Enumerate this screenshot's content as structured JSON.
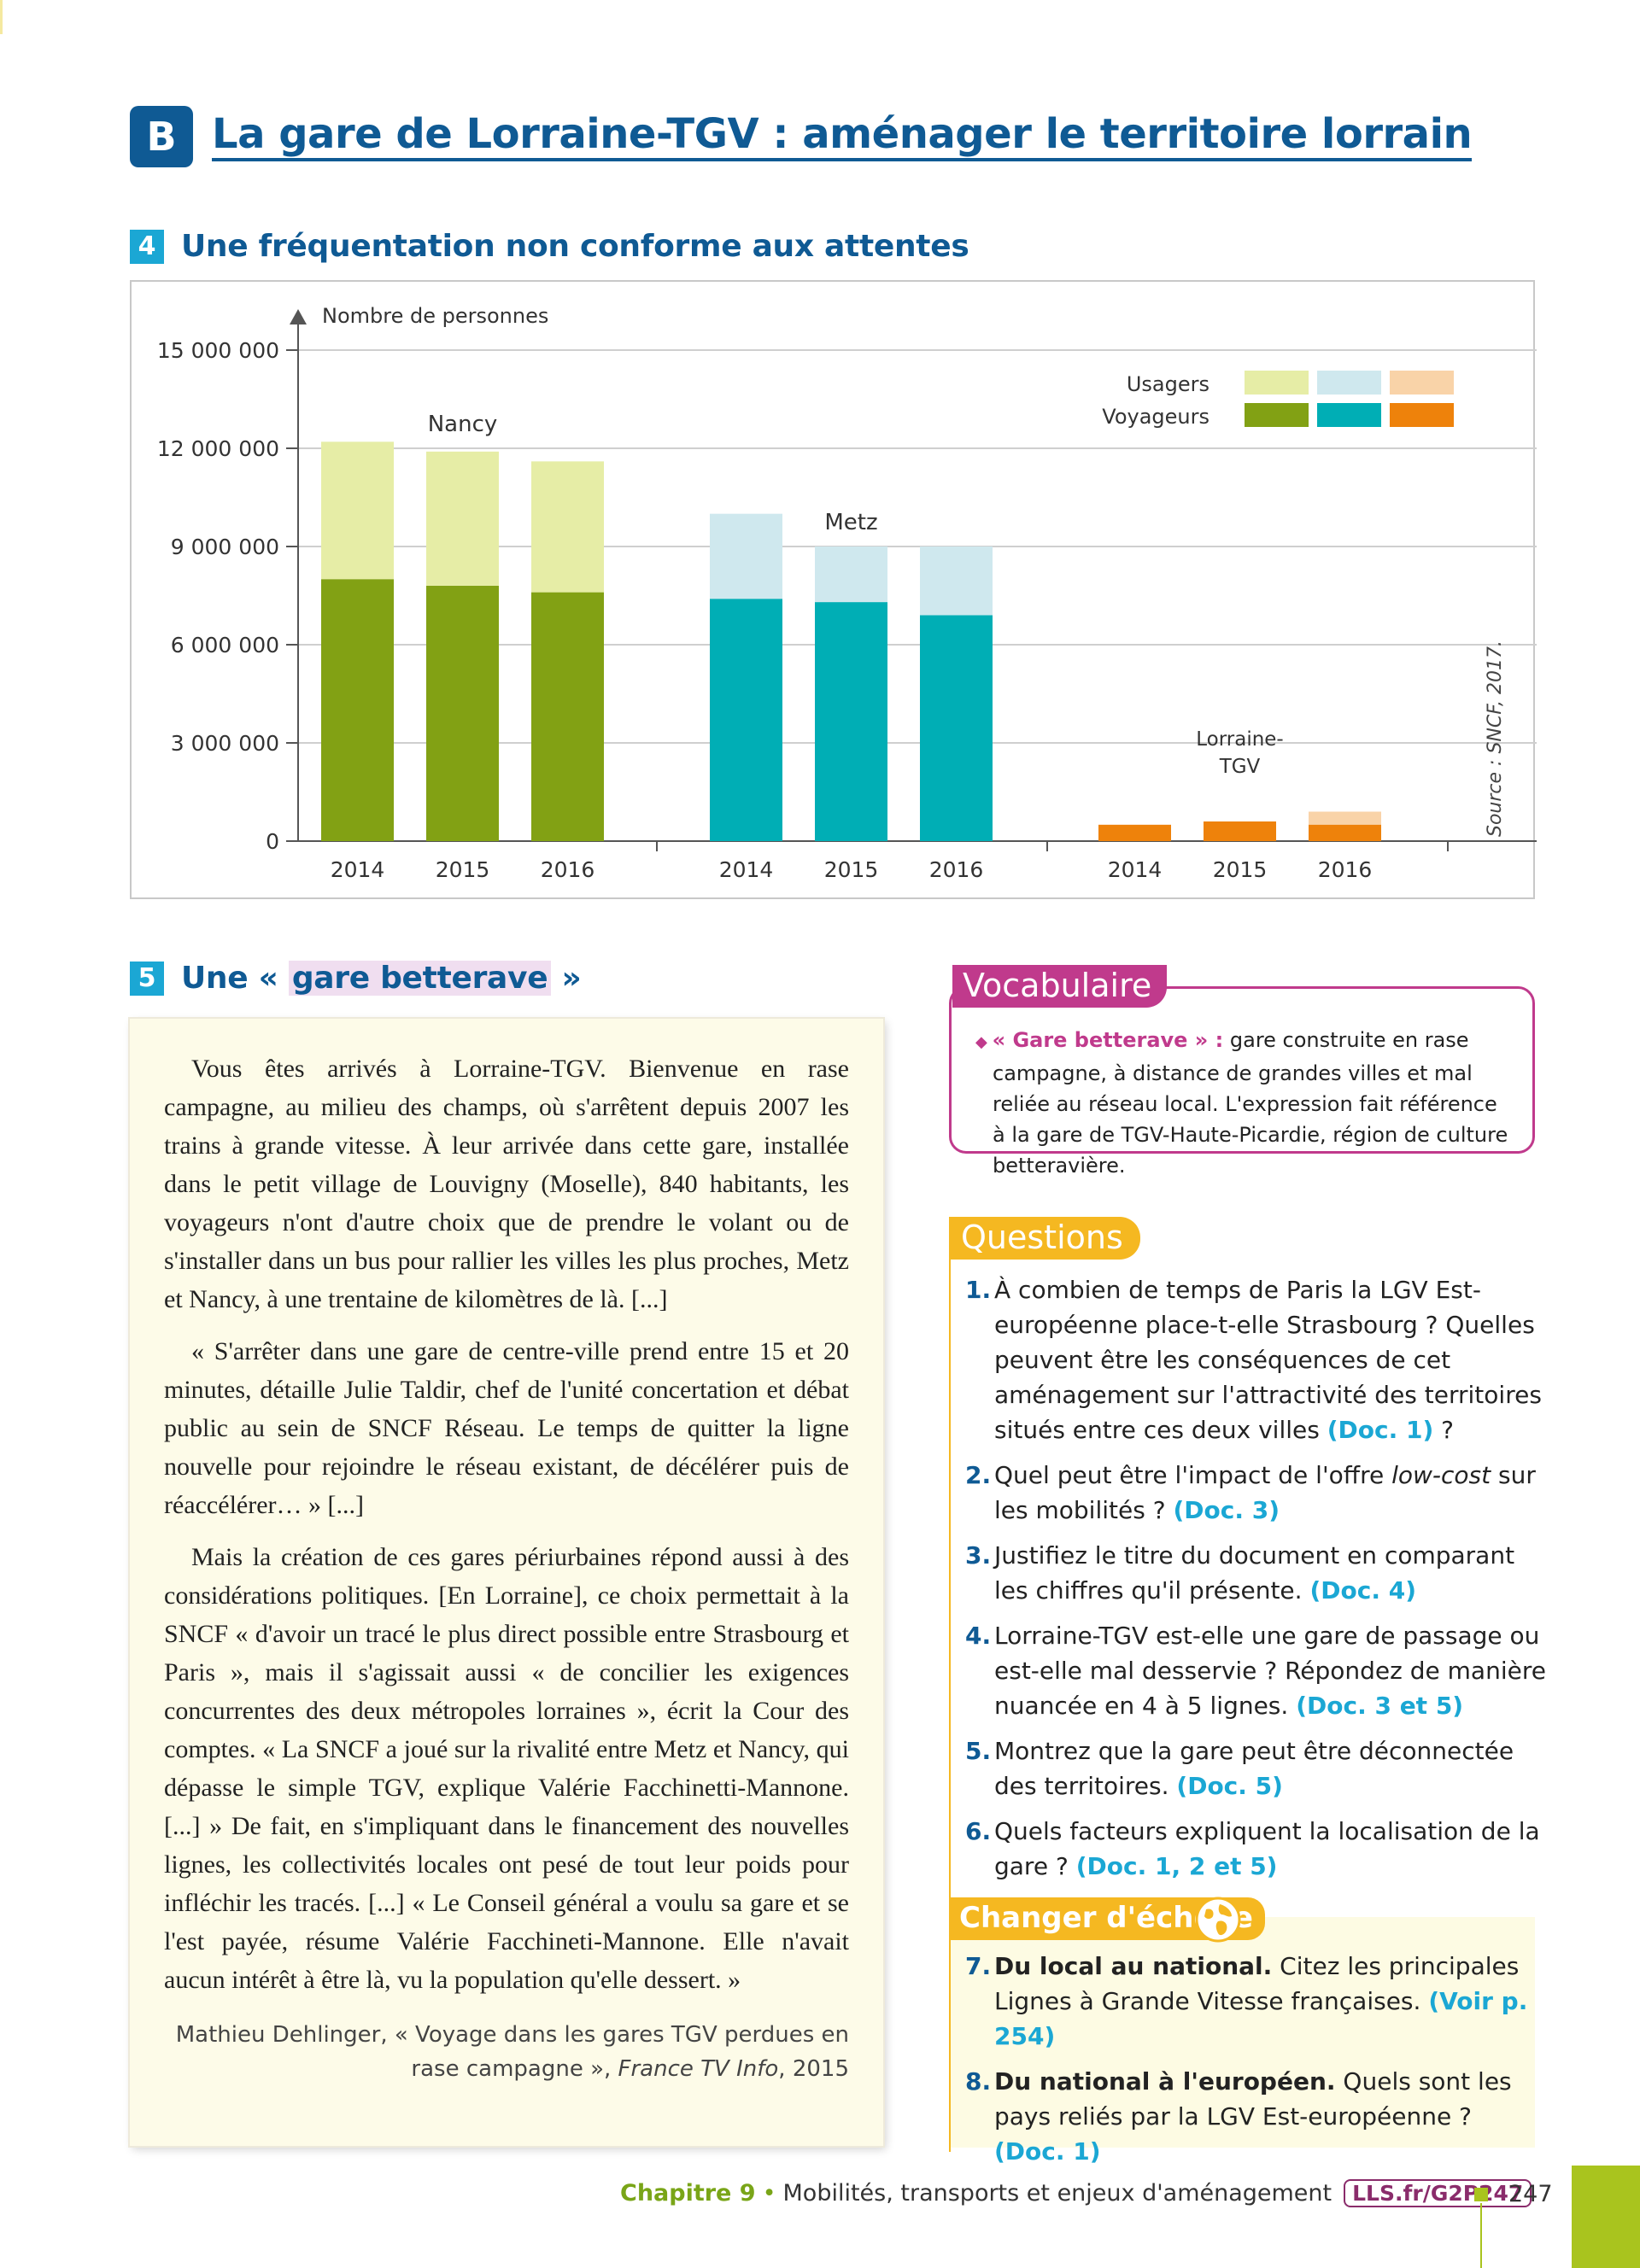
{
  "section": {
    "letter": "B",
    "title": "La gare de Lorraine-TGV : aménager le territoire lorrain"
  },
  "doc4": {
    "number": "4",
    "title": "Une fréquentation non conforme aux attentes",
    "source": "Source : SNCF, 2017."
  },
  "chart_data": {
    "type": "bar",
    "stacked": true,
    "ylabel": "Nombre de personnes",
    "ylim": [
      0,
      15000000
    ],
    "yticks": [
      0,
      3000000,
      6000000,
      9000000,
      12000000,
      15000000
    ],
    "ytick_labels": [
      "0",
      "3 000 000",
      "6 000 000",
      "9 000 000",
      "12 000 000",
      "15 000 000"
    ],
    "grid": true,
    "legend": {
      "placement": "top-right",
      "entries": [
        "Usagers",
        "Voyageurs"
      ]
    },
    "groups": [
      {
        "name_lines": [
          "Nancy"
        ],
        "years": [
          "2014",
          "2015",
          "2016"
        ],
        "voyageurs": [
          8000000,
          7800000,
          7600000
        ],
        "usagers_total": [
          12200000,
          11900000,
          11600000
        ],
        "color_dark": "#82a114",
        "color_light": "#e6eda6"
      },
      {
        "name_lines": [
          "Metz"
        ],
        "years": [
          "2014",
          "2015",
          "2016"
        ],
        "voyageurs": [
          7400000,
          7300000,
          6900000
        ],
        "usagers_total": [
          10000000,
          9000000,
          9000000
        ],
        "color_dark": "#00aeb5",
        "color_light": "#cfe8ee"
      },
      {
        "name_lines": [
          "Lorraine-",
          "TGV"
        ],
        "years": [
          "2014",
          "2015",
          "2016"
        ],
        "voyageurs": [
          500000,
          600000,
          500000
        ],
        "usagers_total": [
          500000,
          600000,
          900000
        ],
        "color_dark": "#ee820b",
        "color_light": "#f9d3a8"
      }
    ]
  },
  "doc5": {
    "number": "5",
    "title_pre": "Une « ",
    "title_hl": "gare betterave",
    "title_post": " »",
    "paragraphs": [
      "Vous êtes arrivés à Lorraine-TGV. Bienvenue en rase campagne, au milieu des champs, où s'arrêtent depuis 2007 les trains à grande vitesse. À leur arrivée dans cette gare, installée dans le petit village de Louvigny (Moselle), 840 habitants, les voyageurs n'ont d'autre choix que de prendre le volant ou de s'installer dans un bus pour rallier les villes les plus proches, Metz et Nancy, à une trentaine de kilomètres de là. [...]",
      "« S'arrêter dans une gare de centre-ville prend entre 15 et 20 minutes, détaille Julie Taldir, chef de l'unité concertation et débat public au sein de SNCF Réseau. Le temps de quitter la ligne nouvelle pour rejoindre le réseau existant, de décélérer puis de réaccélérer… » [...]",
      "Mais la création de ces gares périurbaines répond aussi à des considérations politiques. [En Lorraine], ce choix permettait à la SNCF « d'avoir un tracé le plus direct possible entre Strasbourg et Paris », mais il s'agissait aussi « de concilier les exigences concurrentes des deux métropoles lorraines », écrit la Cour des comptes. « La SNCF a joué sur la rivalité entre Metz et Nancy, qui dépasse le simple TGV, explique Valérie Facchinetti-Mannone. [...] » De fait, en s'impliquant dans le financement des nouvelles lignes, les collectivités locales ont pesé de tout leur poids pour infléchir les tracés. [...] « Le Conseil général a voulu sa gare et se l'est payée, résume Valérie Facchineti-Mannone. Elle n'avait aucun intérêt à être là, vu la population qu'elle dessert. »"
    ],
    "credit_author": "Mathieu Dehlinger, « Voyage dans les gares TGV perdues en rase campagne », ",
    "credit_source": "France TV Info",
    "credit_year": ", 2015"
  },
  "vocab": {
    "label": "Vocabulaire",
    "term": "« Gare betterave » :",
    "definition": " gare construite en rase campagne, à distance de grandes villes et mal reliée au réseau local. L'expression fait référence à la gare de TGV-Haute-Picardie, région de culture betteravière."
  },
  "questions": {
    "label": "Questions",
    "items": [
      {
        "num": "1.",
        "text": "À combien de temps de Paris la LGV Est-européenne place-t-elle Strasbourg ? Quelles peuvent être les conséquences de cet aménagement sur l'attractivité des territoires situés entre ces deux villes ",
        "ref": "(Doc. 1)",
        "tail": " ?"
      },
      {
        "num": "2.",
        "text": "Quel peut être l'impact de l'offre ",
        "em": "low-cost",
        "text2": " sur les mobilités ? ",
        "ref": "(Doc. 3)"
      },
      {
        "num": "3.",
        "text": "Justifiez le titre du document en comparant les chiffres qu'il présente. ",
        "ref": "(Doc. 4)"
      },
      {
        "num": "4.",
        "text": "Lorraine-TGV est-elle une gare de passage ou est-elle mal desservie ? Répondez de manière nuancée en 4 à 5 lignes. ",
        "ref": "(Doc. 3 et 5)"
      },
      {
        "num": "5.",
        "text": "Montrez que la gare peut être déconnectée des territoires. ",
        "ref": "(Doc. 5)"
      },
      {
        "num": "6.",
        "text": "Quels facteurs expliquent la localisation de la gare ? ",
        "ref": "(Doc. 1, 2 et 5)"
      }
    ]
  },
  "echelle": {
    "label": "Changer d'échelle",
    "items": [
      {
        "num": "7.",
        "lead": "Du local au national.",
        "text": " Citez les principales Lignes à Grande Vitesse françaises. ",
        "ref": "(Voir p. 254)"
      },
      {
        "num": "8.",
        "lead": "Du national à l'européen.",
        "text": " Quels sont les pays reliés par la LGV Est-européenne ? ",
        "ref": "(Doc. 1)"
      }
    ]
  },
  "footer": {
    "chapter": "Chapitre 9",
    "bullet": "•",
    "subtitle": "Mobilités, transports et enjeux d'aménagement",
    "link": "LLS.fr/G2P247",
    "page": "247"
  }
}
